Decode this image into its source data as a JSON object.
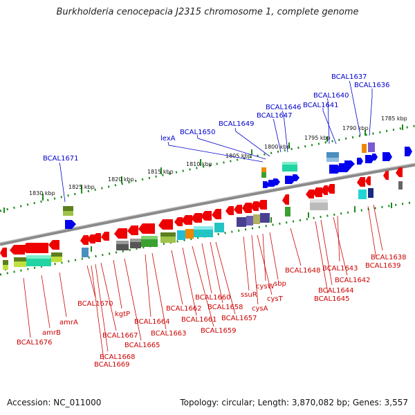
{
  "title": "Burkholderia cenocepacia J2315 chromosome 1, complete genome",
  "accession_text": "Accession: NC_011000",
  "summary_text": "Topology: circular; Length: 3,870,082 bp; Genes: 3,557",
  "kbp_labels": [
    "1785 kbp",
    "1790 kbp",
    "1795 kbp",
    "1800 kbp",
    "1805 kbp",
    "1810 kbp",
    "1815 kbp",
    "1820 kbp",
    "1825 kbp",
    "1830 kbp"
  ],
  "colors": {
    "forward_gene": "#0000ee",
    "reverse_gene": "#ee0000",
    "backbone": "#888888",
    "ticks": "#1a8a1a",
    "label_forward": "#0000cc",
    "label_reverse": "#cc0000"
  },
  "forward_gene_labels": [
    "BCAL1637",
    "BCAL1636",
    "BCAL1640",
    "BCAL1641",
    "BCAL1646",
    "BCAL1647",
    "BCAL1649",
    "BCAL1650",
    "lexA",
    "BCAL1671"
  ],
  "reverse_gene_labels": [
    "BCAL1638",
    "BCAL1639",
    "BCAL1643",
    "BCAL1642",
    "BCAL1644",
    "BCAL1645",
    "BCAL1648",
    "sbp",
    "cysW",
    "cysT",
    "ssuR",
    "cysA",
    "BCAL1660",
    "BCAL1658",
    "BCAL1657",
    "BCAL1662",
    "BCAL1661",
    "BCAL1659",
    "BCAL1664",
    "BCAL1663",
    "BCAL1670",
    "kgtP",
    "BCAL1667",
    "BCAL1665",
    "BCAL1668",
    "BCAL1669",
    "amrA",
    "amrB",
    "BCAL1676"
  ]
}
